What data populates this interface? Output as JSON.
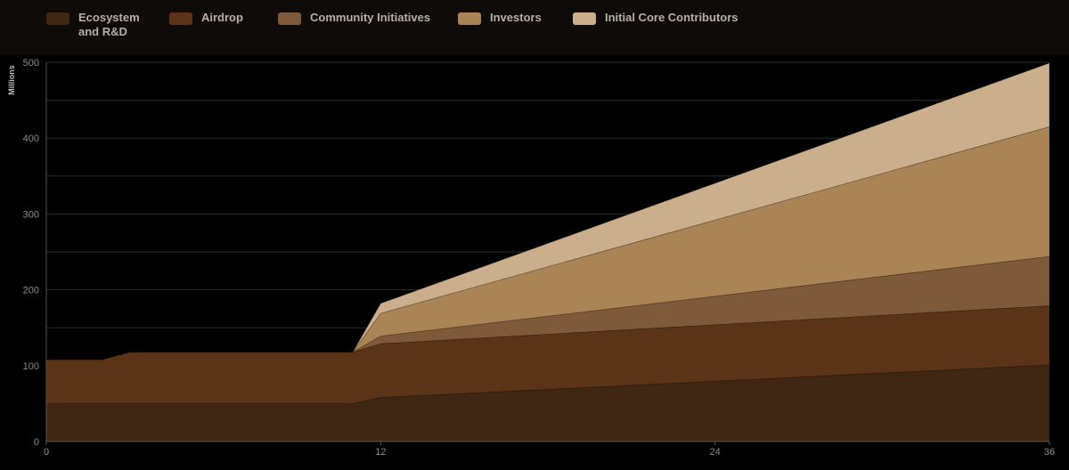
{
  "colors": {
    "background": "#000000",
    "legend_bg": "#0f0b08",
    "grid": "#2b2b2b",
    "axis_text": "#8a8a8a"
  },
  "chart_data": {
    "type": "area",
    "stacked": true,
    "title": "",
    "xlabel": "",
    "ylabel": "Millions",
    "xlim": [
      0,
      36
    ],
    "ylim": [
      0,
      500
    ],
    "xticks": [
      0,
      12,
      24,
      36
    ],
    "yticks": [
      0,
      100,
      200,
      300,
      400,
      500
    ],
    "grid": true,
    "legend_position": "top",
    "x": [
      0,
      2,
      3,
      11,
      12,
      36
    ],
    "series": [
      {
        "name": "Ecosystem\nand R&D",
        "color": "#3f2714",
        "values": [
          50,
          50,
          50,
          50,
          58,
          101
        ]
      },
      {
        "name": "Airdrop",
        "color": "#5b3417",
        "values": [
          58,
          58,
          68,
          68,
          71,
          78
        ]
      },
      {
        "name": "Community Initiatives",
        "color": "#7f5a3a",
        "values": [
          0,
          0,
          0,
          0,
          10,
          65
        ]
      },
      {
        "name": "Investors",
        "color": "#ab8455",
        "values": [
          0,
          0,
          0,
          0,
          30,
          171
        ]
      },
      {
        "name": "Initial Core Contributors",
        "color": "#cbae8b",
        "values": [
          0,
          0,
          0,
          0,
          13,
          84
        ]
      }
    ]
  }
}
